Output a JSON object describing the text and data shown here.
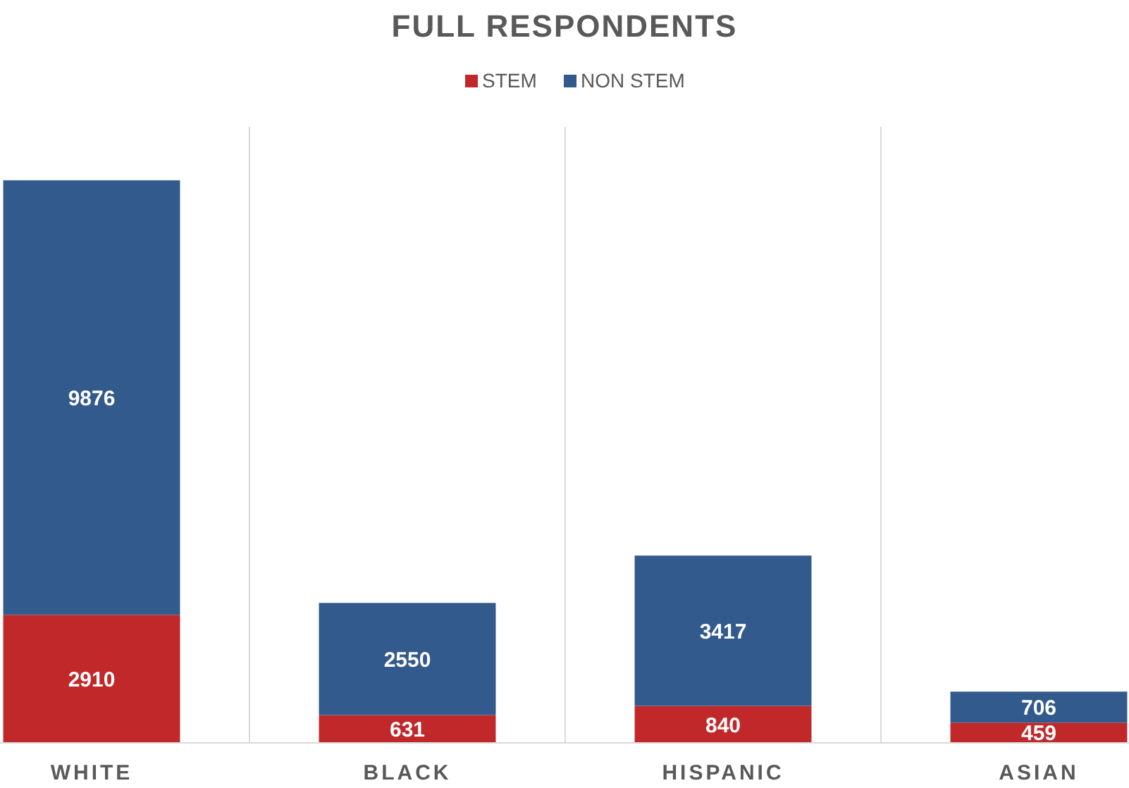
{
  "chart_data": {
    "type": "bar",
    "title": "FULL RESPONDENTS",
    "categories": [
      "WHITE",
      "BLACK",
      "HISPANIC",
      "ASIAN"
    ],
    "stacked": true,
    "series": [
      {
        "name": "STEM",
        "color": "#c0282a",
        "values": [
          2910,
          631,
          840,
          459
        ]
      },
      {
        "name": "NON STEM",
        "color": "#335a8c",
        "values": [
          9876,
          2550,
          3417,
          706
        ]
      }
    ],
    "ylim": [
      0,
      14000
    ],
    "data_labels": true,
    "legend": "top",
    "grid": "x"
  }
}
